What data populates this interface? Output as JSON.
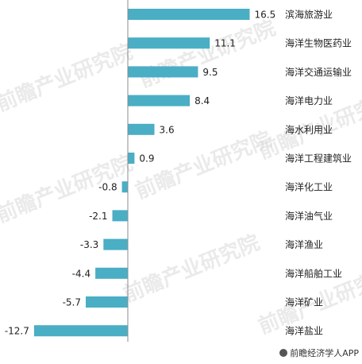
{
  "watermark": "前瞻产业研究院",
  "source": "前瞻经济学人APP",
  "colors": {
    "bar": "#4aaec4",
    "axis": "#8c8c8c"
  },
  "chart_data": {
    "type": "bar",
    "orientation": "horizontal",
    "categories": [
      "滨海旅游业",
      "海洋生物医药业",
      "海洋交通运输业",
      "海洋电力业",
      "海水利用业",
      "海洋工程建筑业",
      "海洋化工业",
      "海洋油气业",
      "海洋渔业",
      "海洋船舶工业",
      "海洋矿业",
      "海洋盐业"
    ],
    "values": [
      16.5,
      11.1,
      9.5,
      8.4,
      3.6,
      0.9,
      -0.8,
      -2.1,
      -3.3,
      -4.4,
      -5.7,
      -12.7
    ],
    "value_labels": [
      "16.5",
      "11.1",
      "9.5",
      "8.4",
      "3.6",
      "0.9",
      "-0.8",
      "-2.1",
      "-3.3",
      "-4.4",
      "-5.7",
      "-12.7"
    ],
    "title": "",
    "xlabel": "",
    "ylabel": "",
    "xlim": [
      -12.7,
      16.5
    ],
    "grid": false,
    "legend": "none"
  }
}
